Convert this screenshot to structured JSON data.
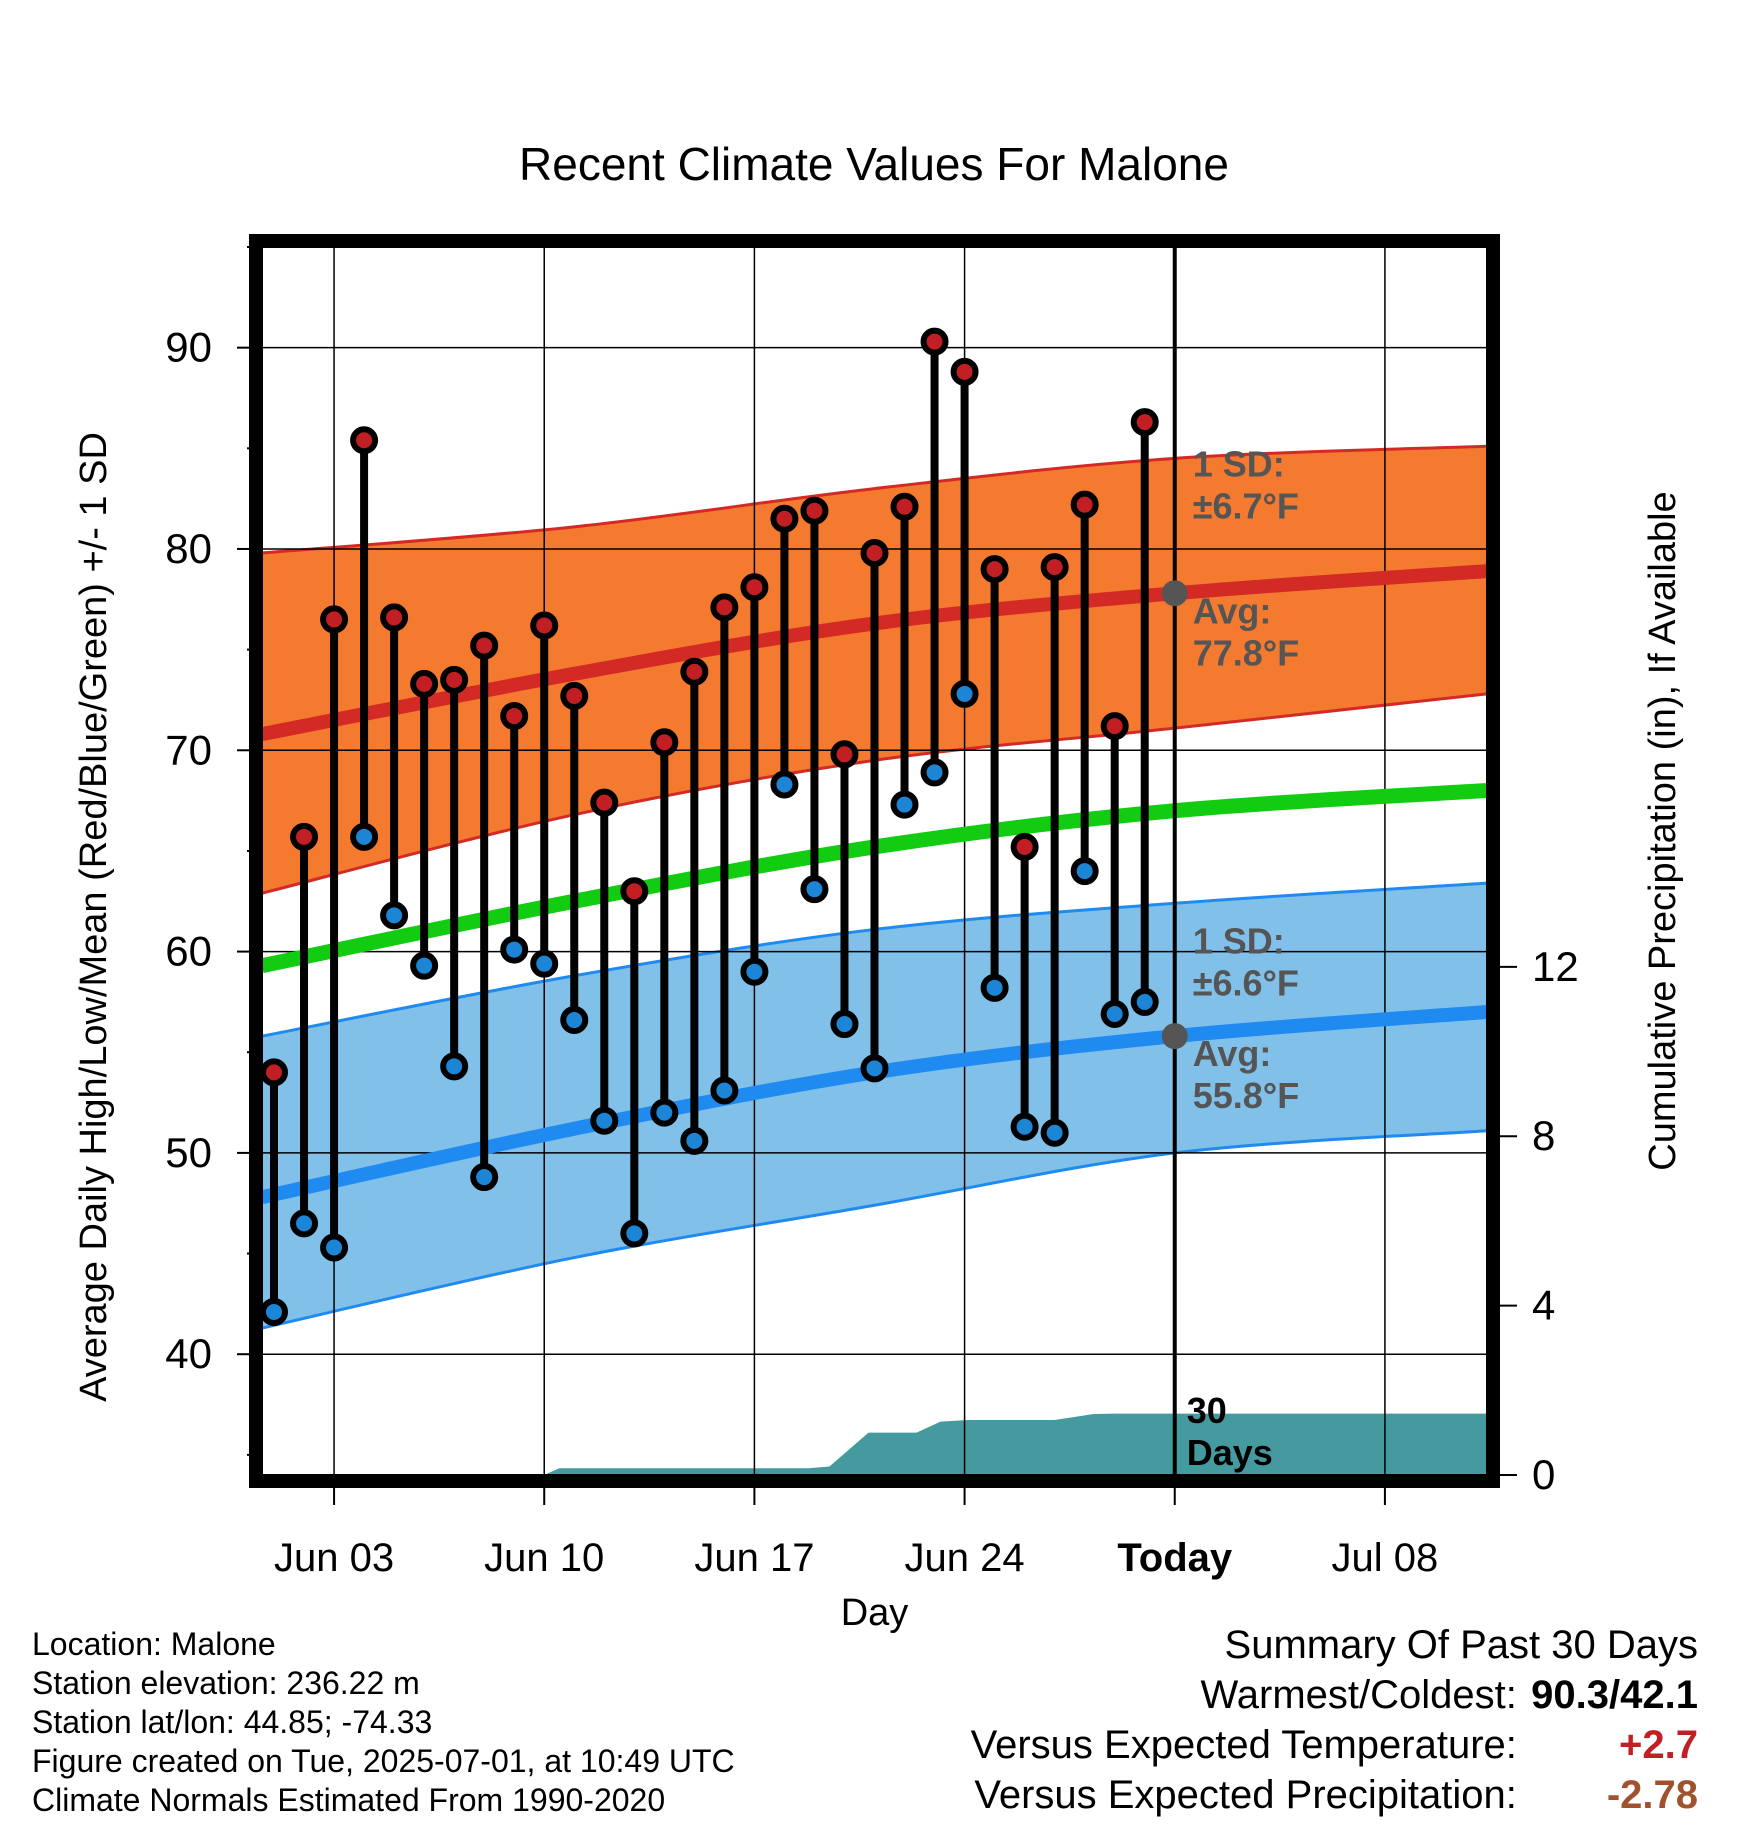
{
  "chart_data": {
    "type": "line",
    "title": "Recent Climate Values For Malone",
    "xlabel": "Day",
    "ylabel_left": "Average Daily High/Low/Mean (Red/Blue/Green) +/- 1 SD",
    "ylabel_right": "Cumulative Precipitation (in), If Available",
    "ylim": [
      34,
      95
    ],
    "ylim_right": [
      0,
      29
    ],
    "xlim": [
      -0.4,
      40.4
    ],
    "yticks": [
      "40",
      "50",
      "60",
      "70",
      "80",
      "90"
    ],
    "yticks_right": [
      "0",
      "4",
      "8",
      "12"
    ],
    "xticks": [
      {
        "day": 2,
        "label": "Jun 03"
      },
      {
        "day": 9,
        "label": "Jun 10"
      },
      {
        "day": 16,
        "label": "Jun 17"
      },
      {
        "day": 23,
        "label": "Jun 24"
      },
      {
        "day": 30,
        "label": "Today"
      },
      {
        "day": 37,
        "label": "Jul 08"
      }
    ],
    "days": [
      "Jun 01",
      "Jun 02",
      "Jun 03",
      "Jun 04",
      "Jun 05",
      "Jun 06",
      "Jun 07",
      "Jun 08",
      "Jun 09",
      "Jun 10",
      "Jun 11",
      "Jun 12",
      "Jun 13",
      "Jun 14",
      "Jun 15",
      "Jun 16",
      "Jun 17",
      "Jun 18",
      "Jun 19",
      "Jun 20",
      "Jun 21",
      "Jun 22",
      "Jun 23",
      "Jun 24",
      "Jun 25",
      "Jun 26",
      "Jun 27",
      "Jun 28",
      "Jun 29",
      "Jun 30"
    ],
    "daily_high": [
      54.0,
      65.7,
      76.5,
      85.4,
      76.6,
      73.3,
      73.5,
      75.2,
      71.7,
      76.2,
      72.7,
      67.4,
      63.0,
      70.4,
      73.9,
      77.1,
      78.1,
      81.5,
      81.9,
      69.8,
      79.8,
      82.1,
      90.3,
      88.8,
      79.0,
      65.2,
      79.1,
      82.2,
      71.2,
      86.3
    ],
    "daily_low": [
      42.1,
      46.5,
      45.3,
      65.7,
      61.8,
      59.3,
      54.3,
      48.8,
      60.1,
      59.4,
      56.6,
      51.6,
      46.0,
      52.0,
      50.6,
      53.1,
      59.0,
      68.3,
      63.1,
      56.4,
      54.2,
      67.3,
      68.9,
      72.8,
      58.2,
      51.3,
      51.0,
      64.0,
      56.9,
      57.5
    ],
    "series": [
      {
        "name": "Avg High",
        "x": [
          -0.4,
          10,
          20,
          30,
          40.4
        ],
        "values": [
          70.8,
          73.8,
          76.3,
          77.8,
          78.9
        ]
      },
      {
        "name": "Avg Low",
        "x": [
          -0.4,
          10,
          20,
          30,
          40.4
        ],
        "values": [
          47.8,
          51.2,
          54.0,
          55.8,
          57.0
        ]
      },
      {
        "name": "Avg Mean",
        "x": [
          -0.4,
          10,
          20,
          30,
          40.4
        ],
        "values": [
          59.3,
          62.5,
          65.2,
          67.0,
          68.0
        ]
      },
      {
        "name": "High +1 SD",
        "x": [
          -0.4,
          10,
          20,
          30,
          40.4
        ],
        "values": [
          79.8,
          81.1,
          83.0,
          84.5,
          85.1
        ]
      },
      {
        "name": "High -1 SD",
        "x": [
          -0.4,
          10,
          20,
          30,
          40.4
        ],
        "values": [
          62.9,
          66.8,
          69.5,
          71.1,
          72.8
        ]
      },
      {
        "name": "Low +1 SD",
        "x": [
          -0.4,
          10,
          20,
          30,
          40.4
        ],
        "values": [
          55.8,
          58.8,
          61.1,
          62.4,
          63.4
        ]
      },
      {
        "name": "Low -1 SD",
        "x": [
          -0.4,
          10,
          20,
          30,
          40.4
        ],
        "values": [
          41.3,
          44.8,
          47.4,
          50.0,
          51.1
        ]
      }
    ],
    "precip_cumulative": {
      "x": [
        -0.4,
        9,
        9.5,
        17.8,
        18.5,
        19.8,
        21.4,
        22.2,
        23.1,
        26.0,
        27.3,
        28.0,
        40.4
      ],
      "values": [
        0.0,
        0.0,
        0.16,
        0.16,
        0.2,
        1.0,
        1.0,
        1.26,
        1.3,
        1.3,
        1.44,
        1.45,
        1.45
      ]
    },
    "annotations": {
      "high_sd_label": "1 SD:",
      "high_sd_value": "±6.7°F",
      "high_avg_label": "Avg:",
      "high_avg_value": "77.8°F",
      "low_sd_label": "1 SD:",
      "low_sd_value": "±6.6°F",
      "low_avg_label": "Avg:",
      "low_avg_value": "55.8°F",
      "window_line1": "30",
      "window_line2": "Days"
    },
    "colors": {
      "high_band": "#f47a30",
      "high_line": "#d42a25",
      "low_band": "#81c0e8",
      "low_line": "#1f8bf0",
      "mean_line": "#11cc11",
      "precip": "#459a9f",
      "high_dot": "#c21f25",
      "low_dot": "#1c85d6",
      "avg_dot": "#555555"
    }
  },
  "info": {
    "location": "Location: Malone",
    "elevation": "Station elevation: 236.22 m",
    "latlon": "Station lat/lon: 44.85; -74.33",
    "created": "Figure created on Tue, 2025-07-01, at 10:49 UTC",
    "normals": "Climate Normals Estimated From 1990-2020"
  },
  "summary": {
    "title": "Summary Of Past 30 Days",
    "warmest_coldest_label": "Warmest/Coldest:",
    "warmest_coldest_value": "90.3/42.1",
    "temp_label": "Versus Expected Temperature:",
    "temp_value": "+2.7",
    "temp_color": "#c21f25",
    "precip_label": "Versus Expected Precipitation:",
    "precip_value": "-2.78",
    "precip_color": "#a0522d"
  }
}
